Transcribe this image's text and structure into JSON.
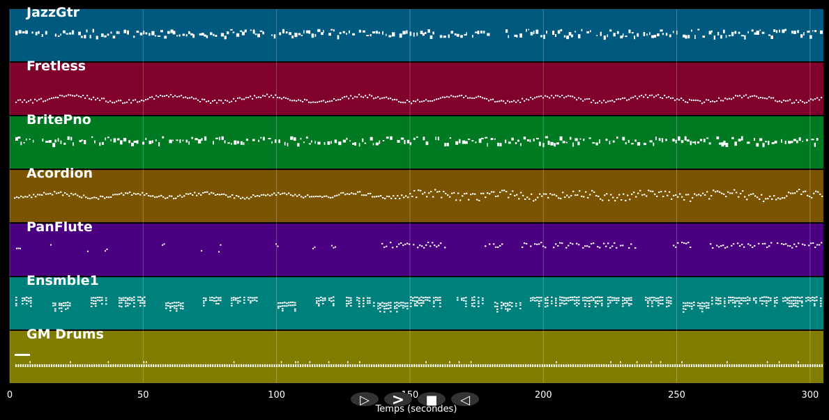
{
  "tracks": [
    {
      "name": "JazzGtr",
      "color": "#005a80",
      "style": "dense_mid"
    },
    {
      "name": "Fretless",
      "color": "#80002e",
      "style": "wave_low"
    },
    {
      "name": "BritePno",
      "color": "#007a22",
      "style": "dense_mid"
    },
    {
      "name": "Acordion",
      "color": "#7a5400",
      "style": "wave_mid"
    },
    {
      "name": "PanFlute",
      "color": "#4a0080",
      "style": "sparse"
    },
    {
      "name": "Ensmble1",
      "color": "#00807d",
      "style": "chords"
    },
    {
      "name": "GM Drums",
      "color": "#807d00",
      "style": "drums"
    }
  ],
  "axis": {
    "label": "Temps (secondes)",
    "min": 0,
    "max": 305,
    "ticks": [
      0,
      50,
      100,
      150,
      200,
      250,
      300
    ]
  },
  "controls": {
    "play": "▷",
    "forward": ">",
    "stop": "■",
    "rewind": "◁"
  },
  "colors": {
    "background": "#000000",
    "grid": "rgba(255,255,255,0.25)",
    "note": "#ffffff"
  }
}
